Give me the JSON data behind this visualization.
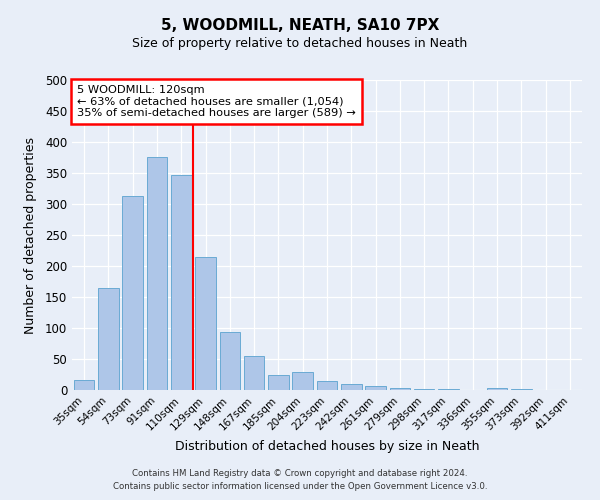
{
  "title": "5, WOODMILL, NEATH, SA10 7PX",
  "subtitle": "Size of property relative to detached houses in Neath",
  "xlabel": "Distribution of detached houses by size in Neath",
  "ylabel": "Number of detached properties",
  "bar_labels": [
    "35sqm",
    "54sqm",
    "73sqm",
    "91sqm",
    "110sqm",
    "129sqm",
    "148sqm",
    "167sqm",
    "185sqm",
    "204sqm",
    "223sqm",
    "242sqm",
    "261sqm",
    "279sqm",
    "298sqm",
    "317sqm",
    "336sqm",
    "355sqm",
    "373sqm",
    "392sqm",
    "411sqm"
  ],
  "bar_values": [
    16,
    165,
    313,
    376,
    346,
    215,
    93,
    55,
    25,
    29,
    14,
    10,
    7,
    4,
    2,
    1,
    0,
    3,
    1,
    0,
    0
  ],
  "bar_color": "#aec6e8",
  "bar_edge_color": "#6aaad4",
  "vline_color": "red",
  "ylim": [
    0,
    500
  ],
  "annotation_title": "5 WOODMILL: 120sqm",
  "annotation_line1": "← 63% of detached houses are smaller (1,054)",
  "annotation_line2": "35% of semi-detached houses are larger (589) →",
  "annotation_box_color": "#ffffff",
  "annotation_box_edge": "red",
  "background_color": "#e8eef8",
  "grid_color": "#ffffff",
  "footer_line1": "Contains HM Land Registry data © Crown copyright and database right 2024.",
  "footer_line2": "Contains public sector information licensed under the Open Government Licence v3.0."
}
